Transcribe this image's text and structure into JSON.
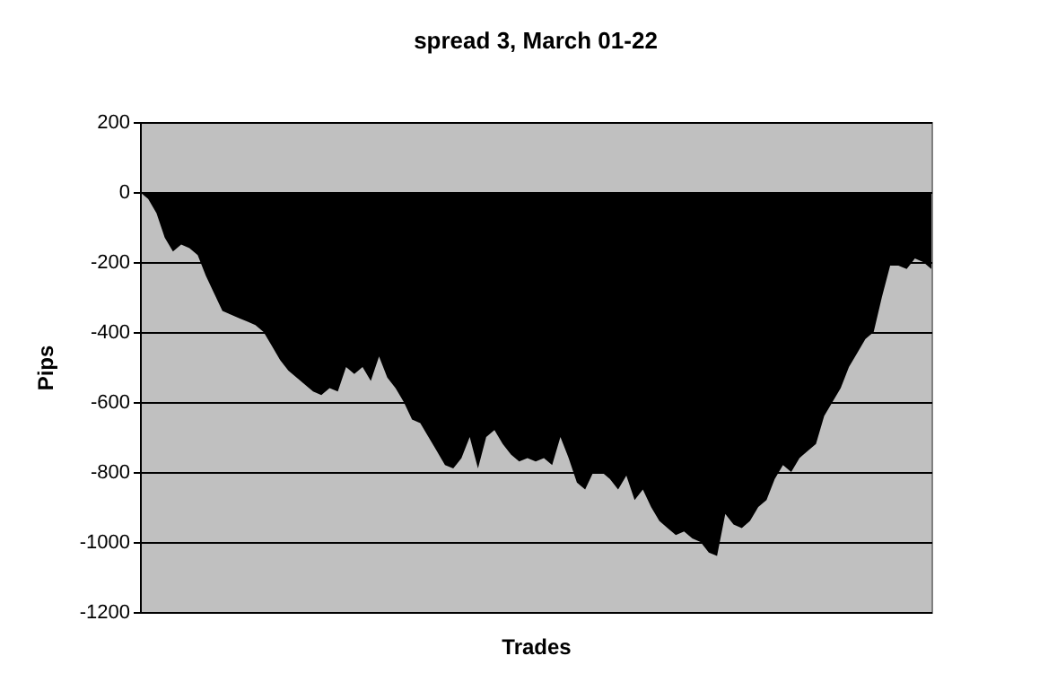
{
  "chart_data": {
    "type": "area",
    "title": "spread 3, March 01-22",
    "xlabel": "Trades",
    "ylabel": "Pips",
    "categories": [
      null,
      null,
      null,
      null,
      null,
      null,
      null,
      null,
      null,
      null,
      null,
      null,
      null,
      null,
      null,
      null,
      null,
      null,
      null,
      null,
      null,
      null,
      null,
      null,
      null,
      null,
      null,
      null,
      null,
      null,
      null,
      null,
      null,
      null,
      null,
      null,
      null,
      null,
      null,
      null,
      null,
      null,
      null,
      null,
      null,
      null,
      null,
      null,
      null,
      null,
      null,
      null,
      null,
      null,
      null,
      null,
      null,
      null,
      null,
      null,
      null,
      null,
      null,
      null,
      null,
      null,
      null,
      null,
      null,
      null,
      null,
      null,
      null,
      null,
      null,
      null,
      null,
      null,
      null,
      null,
      null,
      null,
      null,
      null,
      null,
      null,
      null,
      null,
      null,
      null,
      null,
      null,
      null,
      null,
      null,
      null,
      null
    ],
    "series": [
      {
        "color": "#000000",
        "values": [
          0,
          -20,
          -60,
          -130,
          -170,
          -150,
          -160,
          -180,
          -240,
          -290,
          -340,
          -350,
          -360,
          -370,
          -380,
          -400,
          -440,
          -480,
          -510,
          -530,
          -550,
          -570,
          -580,
          -560,
          -570,
          -500,
          -520,
          -500,
          -540,
          -470,
          -530,
          -560,
          -600,
          -650,
          -660,
          -700,
          -740,
          -780,
          -790,
          -760,
          -700,
          -790,
          -700,
          -680,
          -720,
          -750,
          -770,
          -760,
          -770,
          -760,
          -780,
          -700,
          -760,
          -830,
          -850,
          -800,
          -800,
          -820,
          -850,
          -810,
          -880,
          -850,
          -900,
          -940,
          -960,
          -980,
          -970,
          -990,
          -1000,
          -1030,
          -1040,
          -920,
          -950,
          -960,
          -940,
          -900,
          -880,
          -820,
          -780,
          -800,
          -760,
          -740,
          -720,
          -640,
          -600,
          -560,
          -500,
          -460,
          -420,
          -400,
          -300,
          -210,
          -210,
          -220,
          -190,
          -200,
          -220
        ]
      }
    ],
    "ylim": [
      -1200,
      200
    ],
    "yticks": [
      -1200,
      -1000,
      -800,
      -600,
      -400,
      -200,
      0,
      200
    ],
    "grid": "y"
  }
}
